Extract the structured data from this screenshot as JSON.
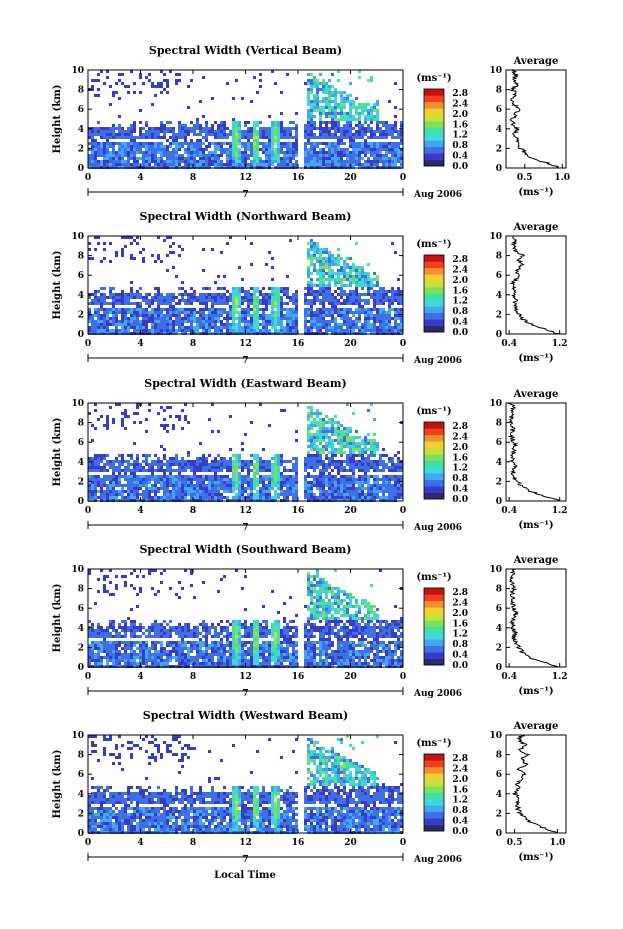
{
  "figure": {
    "xlabel": "Local Time",
    "date_label": "Aug 2006",
    "day_label": "7",
    "ylabel": "Height (km)",
    "cbar_unit": "(ms⁻¹)",
    "avg_title": "Average",
    "avg_xlabel": "(ms⁻¹)"
  },
  "colormap": [
    "#2a2a6e",
    "#3a3ac8",
    "#3f6fe6",
    "#3fa8f0",
    "#3fd8e0",
    "#3fe0a0",
    "#7fe05a",
    "#c8e03a",
    "#f0d030",
    "#f09030",
    "#f04020",
    "#c81010"
  ],
  "chart_data": [
    {
      "type": "heatmap",
      "title": "Spectral Width (Vertical Beam)",
      "x_ticks": [
        "0",
        "4",
        "8",
        "12",
        "16",
        "20",
        "0"
      ],
      "xlim": [
        0,
        24
      ],
      "y_ticks": [
        "0",
        "2",
        "4",
        "6",
        "8",
        "10"
      ],
      "ylim": [
        0,
        10
      ],
      "cbar_ticks": [
        "0.0",
        "0.4",
        "0.8",
        "1.2",
        "1.6",
        "2.0",
        "2.4",
        "2.8"
      ],
      "avg_x_ticks": [
        {
          "label": "0.5",
          "v": 0.5
        },
        {
          "label": "1.0",
          "v": 1.0
        }
      ],
      "avg_xlim": [
        0.25,
        1.05
      ],
      "avg_profile": [
        [
          0,
          0.98
        ],
        [
          0.5,
          0.8
        ],
        [
          1,
          0.6
        ],
        [
          1.5,
          0.52
        ],
        [
          2,
          0.45
        ],
        [
          2.5,
          0.42
        ],
        [
          3,
          0.38
        ],
        [
          3.5,
          0.36
        ],
        [
          4,
          0.4
        ],
        [
          4.5,
          0.34
        ],
        [
          5,
          0.33
        ],
        [
          5.5,
          0.38
        ],
        [
          6,
          0.42
        ],
        [
          6.5,
          0.35
        ],
        [
          7,
          0.33
        ],
        [
          7.5,
          0.38
        ],
        [
          8,
          0.34
        ],
        [
          8.5,
          0.4
        ],
        [
          9,
          0.36
        ],
        [
          9.5,
          0.38
        ],
        [
          10,
          0.35
        ]
      ],
      "avg_center": 0.35
    },
    {
      "type": "heatmap",
      "title": "Spectral Width (Northward Beam)",
      "x_ticks": [
        "0",
        "4",
        "8",
        "12",
        "16",
        "20",
        "0"
      ],
      "xlim": [
        0,
        24
      ],
      "y_ticks": [
        "0",
        "2",
        "4",
        "6",
        "8",
        "10"
      ],
      "ylim": [
        0,
        10
      ],
      "cbar_ticks": [
        "0.0",
        "0.4",
        "0.8",
        "1.2",
        "1.6",
        "2.0",
        "2.4",
        "2.8"
      ],
      "avg_x_ticks": [
        {
          "label": "0.4",
          "v": 0.4
        },
        {
          "label": "1.2",
          "v": 1.2
        }
      ],
      "avg_xlim": [
        0.35,
        1.3
      ],
      "avg_profile": [
        [
          0,
          1.2
        ],
        [
          0.5,
          0.95
        ],
        [
          1,
          0.75
        ],
        [
          1.5,
          0.62
        ],
        [
          2,
          0.55
        ],
        [
          2.5,
          0.5
        ],
        [
          3,
          0.48
        ],
        [
          3.5,
          0.52
        ],
        [
          4,
          0.47
        ],
        [
          4.5,
          0.5
        ],
        [
          5,
          0.45
        ],
        [
          5.5,
          0.5
        ],
        [
          6,
          0.55
        ],
        [
          6.5,
          0.52
        ],
        [
          7,
          0.6
        ],
        [
          7.5,
          0.55
        ],
        [
          8,
          0.62
        ],
        [
          8.5,
          0.5
        ],
        [
          9,
          0.46
        ],
        [
          9.5,
          0.5
        ],
        [
          10,
          0.47
        ]
      ],
      "avg_center": 0.5
    },
    {
      "type": "heatmap",
      "title": "Spectral Width (Eastward Beam)",
      "x_ticks": [
        "0",
        "4",
        "8",
        "12",
        "16",
        "20",
        "0"
      ],
      "xlim": [
        0,
        24
      ],
      "y_ticks": [
        "0",
        "2",
        "4",
        "6",
        "8",
        "10"
      ],
      "ylim": [
        0,
        10
      ],
      "cbar_ticks": [
        "0.0",
        "0.4",
        "0.8",
        "1.2",
        "1.6",
        "2.0",
        "2.4",
        "2.8"
      ],
      "avg_x_ticks": [
        {
          "label": "0.4",
          "v": 0.4
        },
        {
          "label": "1.2",
          "v": 1.2
        }
      ],
      "avg_xlim": [
        0.35,
        1.3
      ],
      "avg_profile": [
        [
          0,
          1.22
        ],
        [
          0.5,
          0.95
        ],
        [
          1,
          0.72
        ],
        [
          1.5,
          0.6
        ],
        [
          2,
          0.52
        ],
        [
          2.5,
          0.48
        ],
        [
          3,
          0.46
        ],
        [
          3.5,
          0.5
        ],
        [
          4,
          0.45
        ],
        [
          4.5,
          0.44
        ],
        [
          5,
          0.46
        ],
        [
          5.5,
          0.5
        ],
        [
          6,
          0.47
        ],
        [
          6.5,
          0.45
        ],
        [
          7,
          0.44
        ],
        [
          7.5,
          0.47
        ],
        [
          8,
          0.45
        ],
        [
          8.5,
          0.43
        ],
        [
          9,
          0.44
        ],
        [
          9.5,
          0.46
        ],
        [
          10,
          0.44
        ]
      ],
      "avg_center": 0.45
    },
    {
      "type": "heatmap",
      "title": "Spectral Width (Southward Beam)",
      "x_ticks": [
        "0",
        "4",
        "8",
        "12",
        "16",
        "20",
        "0"
      ],
      "xlim": [
        0,
        24
      ],
      "y_ticks": [
        "0",
        "2",
        "4",
        "6",
        "8",
        "10"
      ],
      "ylim": [
        0,
        10
      ],
      "cbar_ticks": [
        "0.0",
        "0.4",
        "0.8",
        "1.2",
        "1.6",
        "2.0",
        "2.4",
        "2.8"
      ],
      "avg_x_ticks": [
        {
          "label": "0.4",
          "v": 0.4
        },
        {
          "label": "1.2",
          "v": 1.2
        }
      ],
      "avg_xlim": [
        0.35,
        1.3
      ],
      "avg_profile": [
        [
          0,
          1.2
        ],
        [
          0.5,
          0.92
        ],
        [
          1,
          0.72
        ],
        [
          1.5,
          0.62
        ],
        [
          2,
          0.55
        ],
        [
          2.5,
          0.5
        ],
        [
          3,
          0.47
        ],
        [
          3.5,
          0.5
        ],
        [
          4,
          0.46
        ],
        [
          4.5,
          0.45
        ],
        [
          5,
          0.48
        ],
        [
          5.5,
          0.52
        ],
        [
          6,
          0.48
        ],
        [
          6.5,
          0.45
        ],
        [
          7,
          0.46
        ],
        [
          7.5,
          0.44
        ],
        [
          8,
          0.47
        ],
        [
          8.5,
          0.44
        ],
        [
          9,
          0.45
        ],
        [
          9.5,
          0.46
        ],
        [
          10,
          0.44
        ]
      ],
      "avg_center": 0.46
    },
    {
      "type": "heatmap",
      "title": "Spectral Width (Westward Beam)",
      "x_ticks": [
        "0",
        "4",
        "8",
        "12",
        "16",
        "20",
        "0"
      ],
      "xlim": [
        0,
        24
      ],
      "y_ticks": [
        "0",
        "2",
        "4",
        "6",
        "8",
        "10"
      ],
      "ylim": [
        0,
        10
      ],
      "cbar_ticks": [
        "0.0",
        "0.4",
        "0.8",
        "1.2",
        "1.6",
        "2.0",
        "2.4",
        "2.8"
      ],
      "avg_x_ticks": [
        {
          "label": "0.5",
          "v": 0.5
        },
        {
          "label": "1.0",
          "v": 1.0
        }
      ],
      "avg_xlim": [
        0.4,
        1.1
      ],
      "avg_profile": [
        [
          0,
          1.0
        ],
        [
          0.5,
          0.85
        ],
        [
          1,
          0.7
        ],
        [
          1.5,
          0.62
        ],
        [
          2,
          0.56
        ],
        [
          2.5,
          0.54
        ],
        [
          3,
          0.52
        ],
        [
          3.5,
          0.56
        ],
        [
          4,
          0.5
        ],
        [
          4.5,
          0.55
        ],
        [
          5,
          0.52
        ],
        [
          5.5,
          0.58
        ],
        [
          6,
          0.62
        ],
        [
          6.5,
          0.55
        ],
        [
          7,
          0.65
        ],
        [
          7.5,
          0.58
        ],
        [
          8,
          0.66
        ],
        [
          8.5,
          0.56
        ],
        [
          9,
          0.62
        ],
        [
          9.5,
          0.55
        ],
        [
          10,
          0.6
        ]
      ],
      "avg_center": 0.58
    }
  ]
}
